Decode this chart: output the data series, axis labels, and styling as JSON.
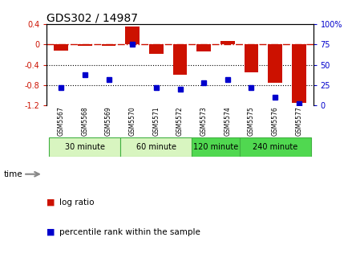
{
  "title": "GDS302 / 14987",
  "samples": [
    "GSM5567",
    "GSM5568",
    "GSM5569",
    "GSM5570",
    "GSM5571",
    "GSM5572",
    "GSM5573",
    "GSM5574",
    "GSM5575",
    "GSM5576",
    "GSM5577"
  ],
  "log_ratio": [
    -0.12,
    -0.02,
    -0.02,
    0.35,
    -0.18,
    -0.6,
    -0.14,
    0.07,
    -0.55,
    -0.75,
    -1.15
  ],
  "percentile": [
    22,
    38,
    32,
    75,
    22,
    20,
    28,
    32,
    22,
    10,
    2
  ],
  "groups": [
    {
      "label": "30 minute",
      "start": 0,
      "end": 2,
      "color": "#d8f5c0"
    },
    {
      "label": "60 minute",
      "start": 3,
      "end": 5,
      "color": "#d8f5c0"
    },
    {
      "label": "120 minute",
      "start": 6,
      "end": 7,
      "color": "#50d850"
    },
    {
      "label": "240 minute",
      "start": 8,
      "end": 10,
      "color": "#50d850"
    }
  ],
  "ylim": [
    -1.2,
    0.4
  ],
  "yticks": [
    -1.2,
    -0.8,
    -0.4,
    0.0,
    0.4
  ],
  "ytick_labels": [
    "-1.2",
    "-0.8",
    "-0.4",
    "0",
    "0.4"
  ],
  "right_yticks": [
    0,
    25,
    50,
    75,
    100
  ],
  "right_ytick_labels": [
    "0",
    "25",
    "50",
    "75",
    "100%"
  ],
  "bar_color": "#cc1100",
  "scatter_color": "#0000cc",
  "hline_color": "#cc1100",
  "dotted_line_color": "#000000",
  "sample_bg_color": "#c8c8c8"
}
